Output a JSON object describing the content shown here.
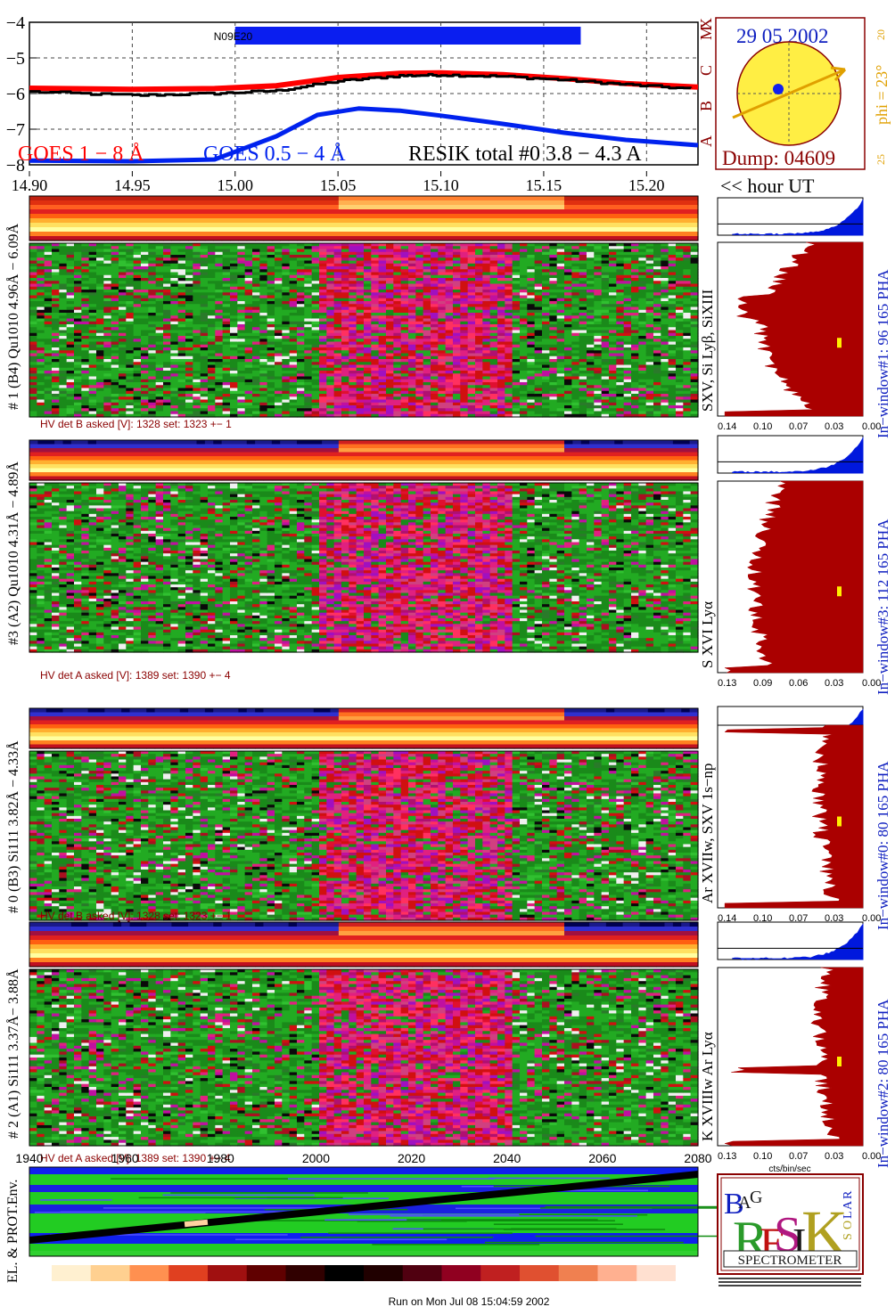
{
  "chart_data": [
    {
      "type": "line",
      "ylim": [
        -8,
        -4
      ],
      "y_ticks": [
        "-4",
        "-5",
        "-6",
        "-7",
        "-8"
      ],
      "xlim": [
        14.9,
        15.225
      ],
      "x_ticks": [
        "14.90",
        "14.95",
        "15.00",
        "15.05",
        "15.10",
        "15.15",
        "15.20"
      ],
      "x_ticks_values": [
        14.9,
        14.95,
        15.0,
        15.05,
        15.1,
        15.15,
        15.2
      ],
      "xlabel": "<< hour UT",
      "flare_classes": [
        "X",
        "M",
        "C",
        "B",
        "A"
      ],
      "flare_values": [
        -4,
        -5,
        -6,
        -7,
        -8
      ],
      "event": {
        "label": "N09E20",
        "x_start": 15.0,
        "x_end": 15.168
      },
      "series": [
        {
          "name": "GOES 1 − 8 Å",
          "color": "#ff0000",
          "x": [
            14.9,
            14.95,
            14.99,
            15.02,
            15.05,
            15.08,
            15.1,
            15.13,
            15.16,
            15.19,
            15.225
          ],
          "values": [
            -5.85,
            -5.88,
            -5.86,
            -5.78,
            -5.55,
            -5.43,
            -5.42,
            -5.47,
            -5.58,
            -5.72,
            -5.82
          ]
        },
        {
          "name": "GOES 0.5 − 4 Å",
          "color": "#0022ee",
          "x": [
            14.9,
            14.95,
            14.99,
            15.02,
            15.04,
            15.06,
            15.08,
            15.1,
            15.13,
            15.16,
            15.19,
            15.225
          ],
          "values": [
            -7.88,
            -7.9,
            -7.85,
            -7.2,
            -6.6,
            -6.42,
            -6.48,
            -6.62,
            -6.85,
            -7.1,
            -7.3,
            -7.45
          ]
        },
        {
          "name": "RESIK total #0  3.8 − 4.3 A",
          "color": "#000000",
          "x": [
            14.9,
            14.95,
            14.99,
            15.02,
            15.05,
            15.08,
            15.1,
            15.13,
            15.16,
            15.19,
            15.225
          ],
          "values": [
            -5.95,
            -6.05,
            -6.0,
            -5.92,
            -5.65,
            -5.5,
            -5.48,
            -5.52,
            -5.62,
            -5.75,
            -5.88
          ]
        }
      ]
    },
    {
      "type": "heatmap",
      "label": "# 1 (B4) Qu1010 4.96Å − 6.09Å",
      "lines_label": "SXV, Si Lyβ, SiXIII",
      "hv_text": "HV det B asked [V]:  1328 set:  1323  +−     1",
      "window_label": "In−window#1:   96 165  PHA",
      "profile_ticks": [
        "0.14",
        "0.10",
        "0.07",
        "0.03",
        "0.00"
      ]
    },
    {
      "type": "heatmap",
      "label": "#3 (A2) Qu1010  4.31Å − 4.89Å",
      "lines_label": "S XVI Lyα",
      "hv_text": "HV det A asked [V]:  1389 set:  1390  +−     4",
      "window_label": "In−window#3:   112 165  PHA",
      "profile_ticks": [
        "0.13",
        "0.09",
        "0.06",
        "0.03",
        "0.00"
      ]
    },
    {
      "type": "heatmap",
      "label": "# 0 (B3) Si111  3.82Å − 4.33Å",
      "lines_label": "Ar XVIIw, SXV 1s−np",
      "hv_text": "HV det B asked [V]:  1328 set:  1323  +−     1",
      "window_label": "In−window#0:   80 165  PHA",
      "profile_ticks": [
        "0.14",
        "0.10",
        "0.07",
        "0.03",
        "0.00"
      ]
    },
    {
      "type": "heatmap",
      "label": "# 2 (A1) Si111  3.37Å−  3.88Å",
      "lines_label": "K XVIIIw  Ar Lyα",
      "hv_text": "HV det A asked [V]:  1389 set:  1390  +−     4",
      "window_label": "In−window#2:   80 165  PHA",
      "profile_ticks": [
        "0.13",
        "0.10",
        "0.07",
        "0.03",
        "0.00"
      ],
      "profile_xlabel": "cts/bin/sec"
    },
    {
      "type": "heatmap",
      "label": "EL. & PROT.Env.",
      "x_ticks": [
        "1940",
        "1960",
        "1980",
        "2000",
        "2020",
        "2040",
        "2060",
        "2080"
      ],
      "xlim": [
        1940,
        2080
      ]
    }
  ],
  "sun": {
    "date": "29 05 2002",
    "phi_label": "phi = 23°",
    "side_top": "20",
    "side_bottom": "25",
    "dump": "Dump: 04609"
  },
  "logo": {
    "title": "SPECTROMETER",
    "letters": [
      "B",
      "R",
      "A",
      "G",
      "E",
      "S",
      "I",
      "K",
      "S",
      "O",
      "L",
      "A",
      "R"
    ]
  },
  "footer": "Run on Mon Jul 08 15:04:59 2002",
  "colors": {
    "goes_long": "#ff0000",
    "goes_short": "#0022ee",
    "profile_fill": "#aa0000",
    "pha_fill": "#0018dd",
    "sun_fill": "#ffee44",
    "sun_arrow": "#e0a000",
    "label_red": "#8a0000",
    "label_blue": "#1020c0"
  }
}
